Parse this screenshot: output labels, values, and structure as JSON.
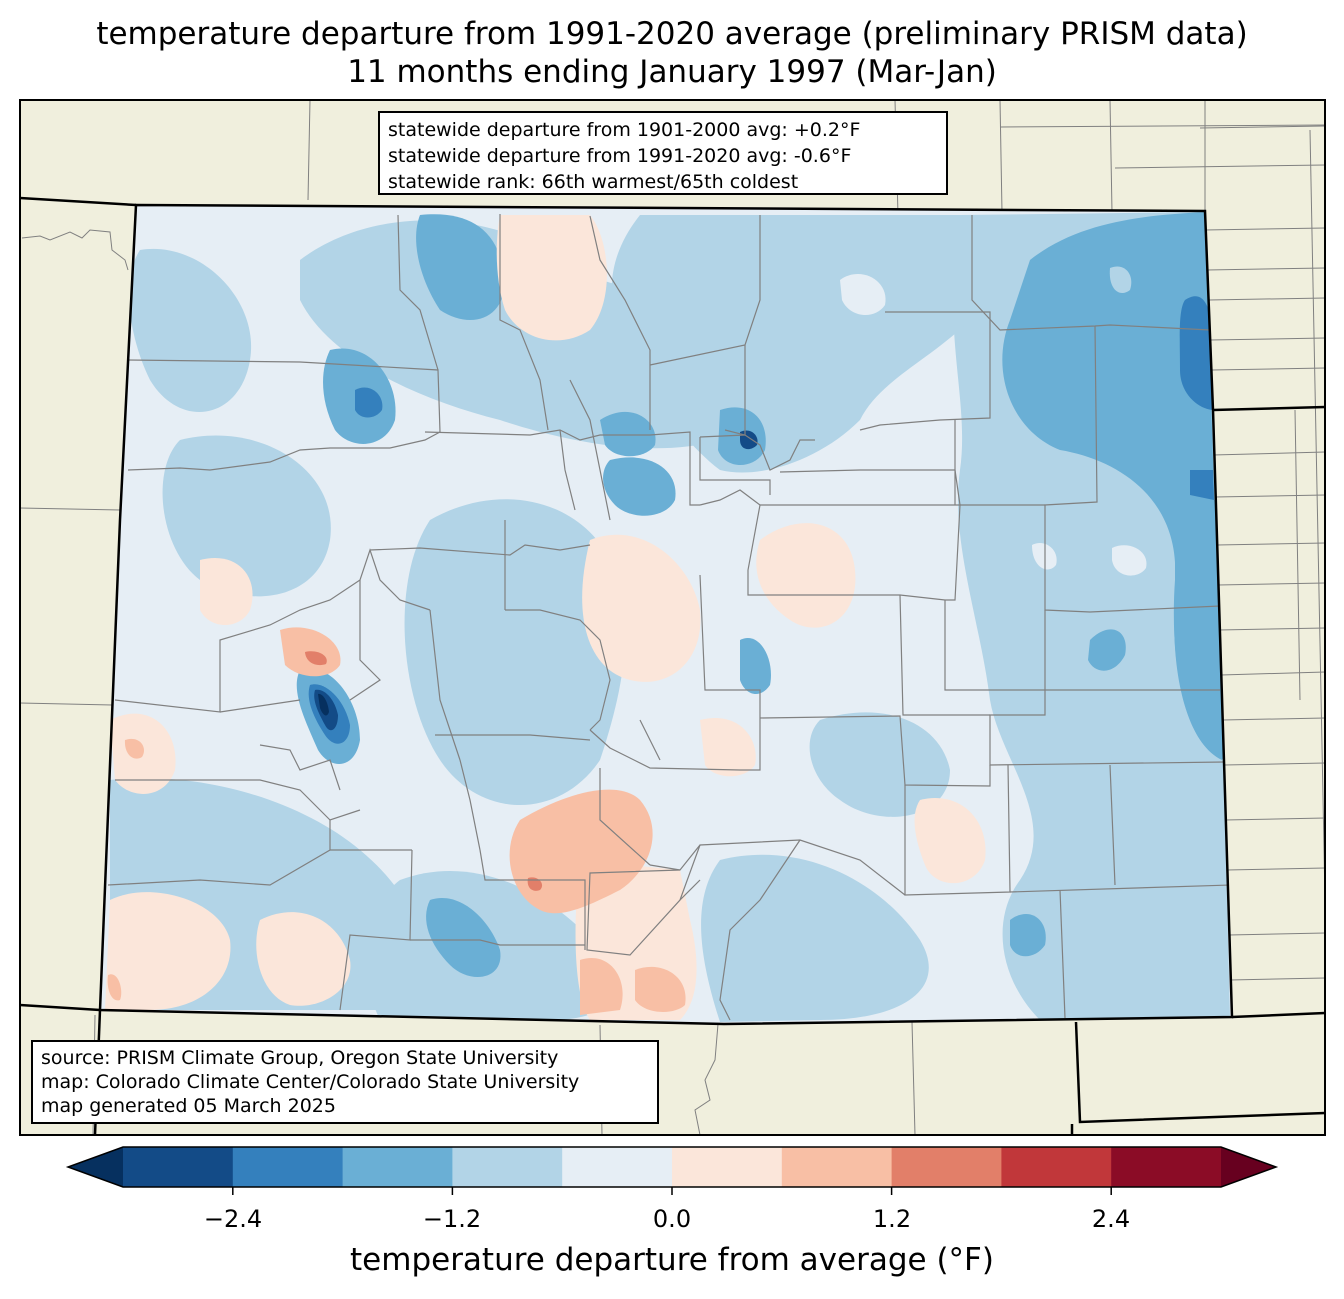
{
  "title": {
    "line1": "temperature departure from 1991-2020 average (preliminary PRISM data)",
    "line2": "11 months ending January 1997 (Mar-Jan)"
  },
  "stats": {
    "line1": "statewide departure from 1901-2000 avg: +0.2°F",
    "line2": "statewide departure from 1991-2020 avg: -0.6°F",
    "line3": "statewide rank: 66th warmest/65th coldest"
  },
  "source": {
    "line1": "source: PRISM Climate Group, Oregon State University",
    "line2": "map: Colorado Climate Center/Colorado State University",
    "line3": "map generated 05 March 2025"
  },
  "colorbar": {
    "label": "temperature departure from average (°F)",
    "ticks": [
      "−2.4",
      "−1.2",
      "0.0",
      "1.2",
      "2.4"
    ],
    "bin_edges": [
      -3.0,
      -2.4,
      -1.8,
      -1.2,
      -0.6,
      0.0,
      0.6,
      1.2,
      1.8,
      2.4,
      3.0
    ],
    "colors": [
      "#134b87",
      "#3480bd",
      "#6aafd5",
      "#b2d4e7",
      "#e6eef5",
      "#fbe6da",
      "#f8bfa5",
      "#e27f69",
      "#c1373a",
      "#8b0c26"
    ],
    "under_color": "#06305f",
    "over_color": "#67001f"
  },
  "map_colors": {
    "land": "#f0efdd",
    "state_border": "#000000",
    "county_border": "#808080"
  }
}
